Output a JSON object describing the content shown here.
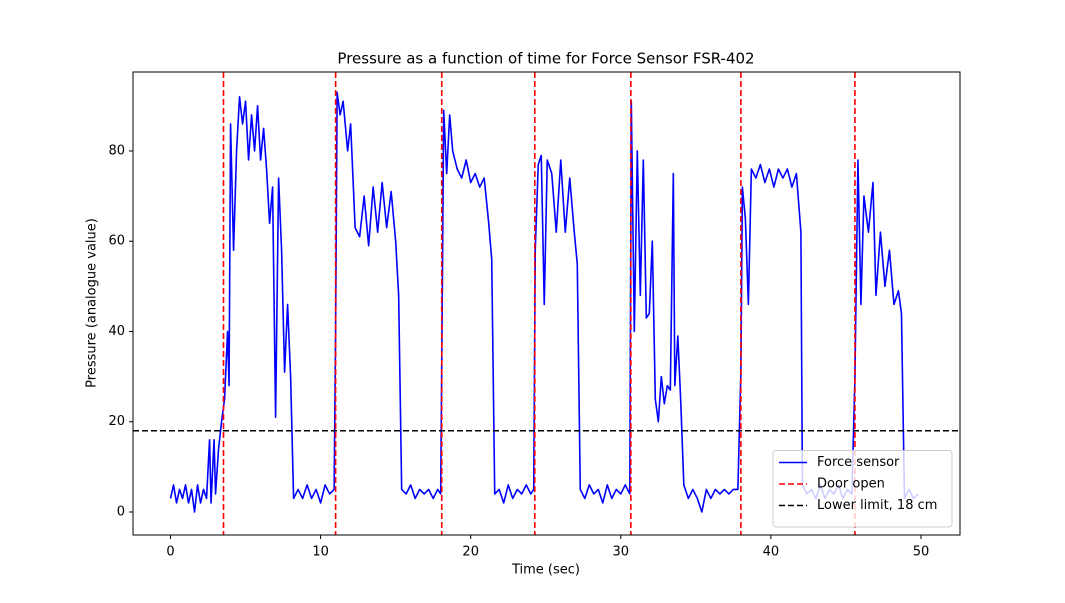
{
  "chart_data": {
    "type": "line",
    "title": "Pressure as a function of time for Force Sensor FSR-402",
    "x_label": "Time (sec)",
    "y_label": "Pressure (analogue value)",
    "xlim": [
      -2.5,
      52.6
    ],
    "ylim": [
      -5.1,
      97.5
    ],
    "xticks": [
      0,
      10,
      20,
      30,
      40,
      50
    ],
    "yticks": [
      0,
      20,
      40,
      60,
      80
    ],
    "legend": "lower right",
    "series": [
      {
        "name": "Force sensor",
        "color": "#0000ff",
        "x": [
          0,
          0.2,
          0.4,
          0.6,
          0.8,
          1.0,
          1.2,
          1.4,
          1.6,
          1.8,
          2.0,
          2.2,
          2.4,
          2.6,
          2.7,
          2.9,
          3.0,
          3.2,
          3.4,
          3.6,
          3.8,
          3.9,
          4.0,
          4.2,
          4.4,
          4.6,
          4.8,
          5.0,
          5.2,
          5.4,
          5.6,
          5.8,
          6.0,
          6.2,
          6.4,
          6.6,
          6.8,
          7.0,
          7.2,
          7.4,
          7.6,
          7.8,
          8.0,
          8.2,
          8.5,
          8.8,
          9.1,
          9.4,
          9.7,
          10.0,
          10.3,
          10.6,
          10.9,
          11.0,
          11.1,
          11.3,
          11.5,
          11.8,
          12.0,
          12.3,
          12.6,
          12.9,
          13.2,
          13.5,
          13.8,
          14.1,
          14.4,
          14.7,
          15.0,
          15.2,
          15.4,
          15.7,
          16.0,
          16.3,
          16.6,
          16.9,
          17.2,
          17.5,
          17.8,
          18.0,
          18.1,
          18.2,
          18.4,
          18.6,
          18.8,
          19.1,
          19.4,
          19.7,
          20.0,
          20.3,
          20.6,
          20.9,
          21.2,
          21.4,
          21.6,
          21.9,
          22.2,
          22.5,
          22.8,
          23.1,
          23.4,
          23.7,
          24.0,
          24.2,
          24.3,
          24.5,
          24.7,
          24.9,
          25.1,
          25.4,
          25.7,
          26.0,
          26.3,
          26.6,
          26.9,
          27.1,
          27.3,
          27.6,
          27.9,
          28.2,
          28.5,
          28.8,
          29.1,
          29.4,
          29.7,
          30.0,
          30.3,
          30.6,
          30.7,
          30.9,
          31.1,
          31.3,
          31.5,
          31.7,
          31.9,
          32.1,
          32.3,
          32.5,
          32.7,
          32.9,
          33.1,
          33.3,
          33.5,
          33.6,
          33.8,
          34.0,
          34.2,
          34.5,
          34.8,
          35.1,
          35.4,
          35.7,
          36.0,
          36.3,
          36.6,
          36.9,
          37.2,
          37.5,
          37.8,
          38.0,
          38.1,
          38.3,
          38.5,
          38.7,
          39.0,
          39.3,
          39.6,
          39.9,
          40.2,
          40.5,
          40.8,
          41.1,
          41.4,
          41.7,
          42.0,
          42.1,
          42.4,
          42.7,
          43.0,
          43.3,
          43.6,
          43.9,
          44.2,
          44.5,
          44.8,
          45.1,
          45.4,
          45.6,
          45.8,
          46.0,
          46.2,
          46.5,
          46.8,
          47.0,
          47.3,
          47.6,
          47.9,
          48.2,
          48.5,
          48.7,
          48.9,
          49.2,
          49.5,
          49.8
        ],
        "values": [
          3,
          6,
          2,
          5,
          3,
          6,
          2,
          5,
          0,
          6,
          2,
          5,
          3,
          16,
          2,
          16,
          4,
          14,
          20,
          25,
          40,
          28,
          86,
          58,
          80,
          92,
          86,
          91,
          78,
          88,
          80,
          90,
          78,
          85,
          76,
          64,
          72,
          21,
          74,
          58,
          31,
          46,
          30,
          3,
          5,
          3,
          6,
          3,
          5,
          2,
          6,
          4,
          5,
          40,
          93,
          88,
          91,
          80,
          86,
          63,
          61,
          70,
          59,
          72,
          62,
          73,
          63,
          71,
          60,
          48,
          5,
          4,
          6,
          3,
          5,
          4,
          5,
          3,
          5,
          4,
          45,
          89,
          75,
          88,
          80,
          76,
          74,
          78,
          73,
          75,
          72,
          74,
          64,
          56,
          4,
          5,
          2,
          6,
          3,
          5,
          4,
          6,
          4,
          5,
          58,
          77,
          79,
          46,
          78,
          75,
          62,
          78,
          62,
          74,
          62,
          55,
          5,
          3,
          6,
          4,
          5,
          2,
          6,
          3,
          5,
          4,
          6,
          4,
          91,
          40,
          80,
          48,
          78,
          43,
          44,
          60,
          25,
          20,
          30,
          24,
          28,
          27,
          75,
          28,
          39,
          24,
          6,
          3,
          5,
          3,
          0,
          5,
          3,
          5,
          4,
          5,
          4,
          5,
          5,
          31,
          72,
          65,
          46,
          76,
          74,
          77,
          73,
          76,
          72,
          76,
          74,
          76,
          72,
          75,
          62,
          6,
          4,
          5,
          3,
          6,
          3,
          5,
          4,
          6,
          3,
          5,
          4,
          30,
          78,
          46,
          70,
          62,
          73,
          48,
          62,
          50,
          58,
          46,
          49,
          44,
          3,
          5,
          3,
          4
        ]
      }
    ],
    "vlines": {
      "name": "Door open",
      "color": "#ff0000",
      "x": [
        3.53,
        11.0,
        18.07,
        24.27,
        30.67,
        38.0,
        45.6
      ]
    },
    "hlines": {
      "name": "Lower limit, 18 cm",
      "color": "#000000",
      "values": [
        18
      ]
    }
  }
}
